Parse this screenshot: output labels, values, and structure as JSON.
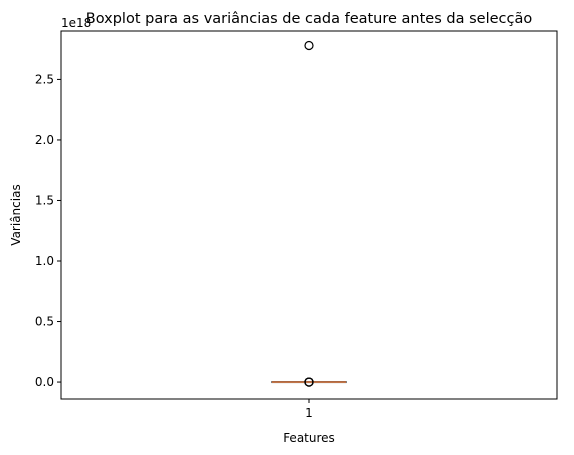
{
  "chart_data": {
    "type": "boxplot",
    "title": "Boxplot para as variâncias de cada feature antes da selecção",
    "xlabel": "Features",
    "ylabel": "Variâncias",
    "y_offset_label": "1e18",
    "ylim": [
      -0.14,
      2.9
    ],
    "yticks": [
      0.0,
      0.5,
      1.0,
      1.5,
      2.0,
      2.5
    ],
    "yticklabels": [
      "0.0",
      "0.5",
      "1.0",
      "1.5",
      "2.0",
      "2.5"
    ],
    "xticklabels": [
      "1"
    ],
    "grid": false,
    "series": [
      {
        "position": 1,
        "q1": 0.0,
        "median": 0.0,
        "q3": 0.0,
        "whisker_low": 0.0,
        "whisker_high": 0.0,
        "outliers": [
          2.78,
          0.0,
          0.0,
          0.0,
          0.0
        ]
      }
    ],
    "colors": {
      "box": "#000000",
      "median": "#dd8452",
      "outlier": "#000000"
    }
  }
}
